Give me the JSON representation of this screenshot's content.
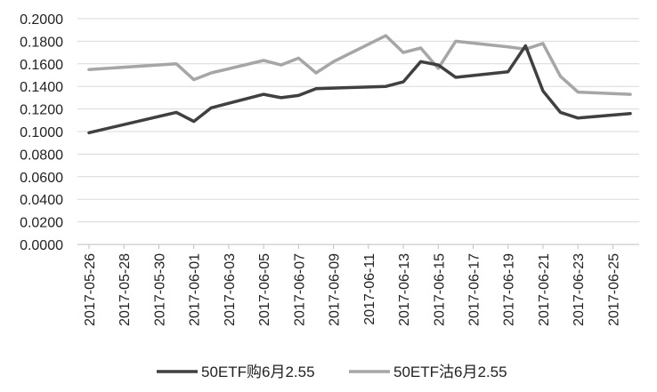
{
  "chart_data": {
    "type": "line",
    "title": "",
    "xlabel": "",
    "ylabel": "",
    "ylim": [
      0,
      0.2
    ],
    "y_ticks": [
      "0.0000",
      "0.0200",
      "0.0400",
      "0.0600",
      "0.0800",
      "0.1000",
      "0.1200",
      "0.1400",
      "0.1600",
      "0.1800",
      "0.2000"
    ],
    "x_tick_labels": [
      "2017-05-26",
      "2017-05-28",
      "2017-05-30",
      "2017-06-01",
      "2017-06-03",
      "2017-06-05",
      "2017-06-07",
      "2017-06-09",
      "2017-06-11",
      "2017-06-13",
      "2017-06-15",
      "2017-06-17",
      "2017-06-19",
      "2017-06-21",
      "2017-06-23",
      "2017-06-25"
    ],
    "x_range": [
      "2017-05-26",
      "2017-06-26"
    ],
    "grid": "horizontal",
    "legend_position": "bottom",
    "series": [
      {
        "name": "50ETF购6月2.55",
        "color": "#404040",
        "points": [
          [
            "2017-05-26",
            0.099
          ],
          [
            "2017-05-31",
            0.117
          ],
          [
            "2017-06-01",
            0.109
          ],
          [
            "2017-06-02",
            0.121
          ],
          [
            "2017-06-05",
            0.133
          ],
          [
            "2017-06-06",
            0.13
          ],
          [
            "2017-06-07",
            0.132
          ],
          [
            "2017-06-08",
            0.138
          ],
          [
            "2017-06-12",
            0.14
          ],
          [
            "2017-06-13",
            0.144
          ],
          [
            "2017-06-14",
            0.162
          ],
          [
            "2017-06-15",
            0.159
          ],
          [
            "2017-06-16",
            0.148
          ],
          [
            "2017-06-19",
            0.153
          ],
          [
            "2017-06-20",
            0.176
          ],
          [
            "2017-06-21",
            0.136
          ],
          [
            "2017-06-22",
            0.117
          ],
          [
            "2017-06-23",
            0.112
          ],
          [
            "2017-06-26",
            0.116
          ]
        ]
      },
      {
        "name": "50ETF沽6月2.55",
        "color": "#a6a6a6",
        "points": [
          [
            "2017-05-26",
            0.155
          ],
          [
            "2017-05-31",
            0.16
          ],
          [
            "2017-06-01",
            0.146
          ],
          [
            "2017-06-02",
            0.152
          ],
          [
            "2017-06-05",
            0.163
          ],
          [
            "2017-06-06",
            0.159
          ],
          [
            "2017-06-07",
            0.165
          ],
          [
            "2017-06-08",
            0.152
          ],
          [
            "2017-06-09",
            0.162
          ],
          [
            "2017-06-12",
            0.185
          ],
          [
            "2017-06-13",
            0.17
          ],
          [
            "2017-06-14",
            0.174
          ],
          [
            "2017-06-15",
            0.156
          ],
          [
            "2017-06-16",
            0.18
          ],
          [
            "2017-06-19",
            0.175
          ],
          [
            "2017-06-20",
            0.173
          ],
          [
            "2017-06-21",
            0.178
          ],
          [
            "2017-06-22",
            0.149
          ],
          [
            "2017-06-23",
            0.135
          ],
          [
            "2017-06-26",
            0.133
          ]
        ]
      }
    ]
  }
}
